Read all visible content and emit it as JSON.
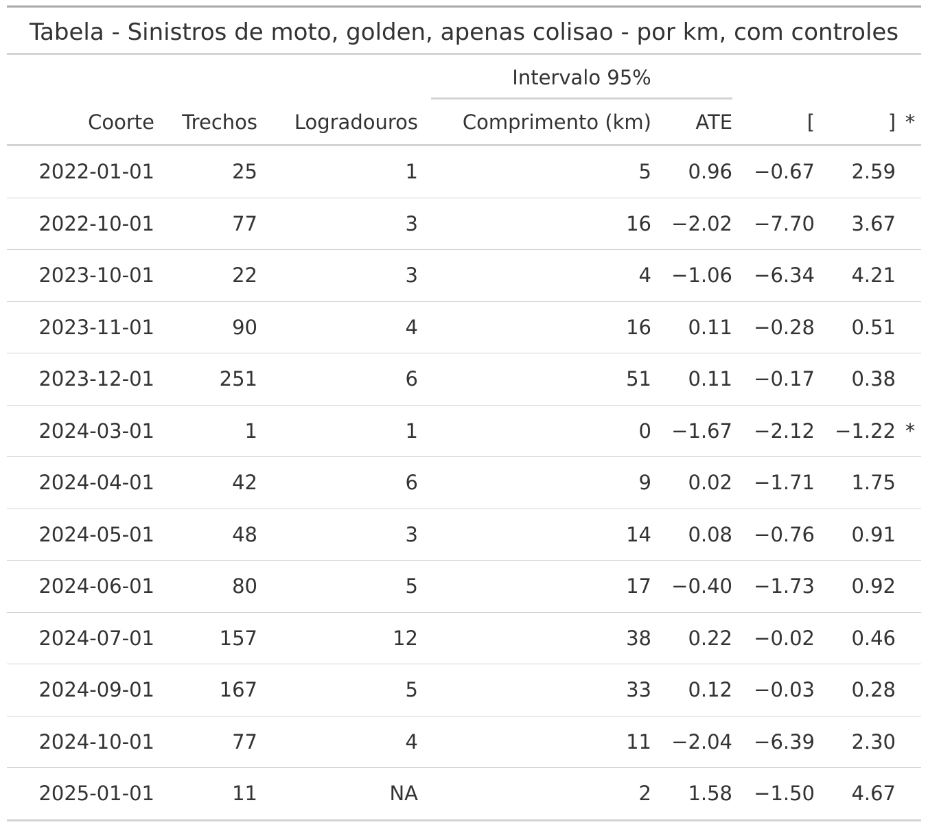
{
  "title": "Tabela - Sinistros de moto, golden, apenas colisao - por km, com controles",
  "spanner": "Intervalo 95%",
  "columns": [
    "Coorte",
    "Trechos",
    "Logradouros",
    "Comprimento (km)",
    "ATE",
    "[",
    "]",
    "*"
  ],
  "rows": [
    [
      "2022-01-01",
      "25",
      "1",
      "5",
      "0.96",
      "−0.67",
      "2.59",
      ""
    ],
    [
      "2022-10-01",
      "77",
      "3",
      "16",
      "−2.02",
      "−7.70",
      "3.67",
      ""
    ],
    [
      "2023-10-01",
      "22",
      "3",
      "4",
      "−1.06",
      "−6.34",
      "4.21",
      ""
    ],
    [
      "2023-11-01",
      "90",
      "4",
      "16",
      "0.11",
      "−0.28",
      "0.51",
      ""
    ],
    [
      "2023-12-01",
      "251",
      "6",
      "51",
      "0.11",
      "−0.17",
      "0.38",
      ""
    ],
    [
      "2024-03-01",
      "1",
      "1",
      "0",
      "−1.67",
      "−2.12",
      "−1.22",
      "*"
    ],
    [
      "2024-04-01",
      "42",
      "6",
      "9",
      "0.02",
      "−1.71",
      "1.75",
      ""
    ],
    [
      "2024-05-01",
      "48",
      "3",
      "14",
      "0.08",
      "−0.76",
      "0.91",
      ""
    ],
    [
      "2024-06-01",
      "80",
      "5",
      "17",
      "−0.40",
      "−1.73",
      "0.92",
      ""
    ],
    [
      "2024-07-01",
      "157",
      "12",
      "38",
      "0.22",
      "−0.02",
      "0.46",
      ""
    ],
    [
      "2024-09-01",
      "167",
      "5",
      "33",
      "0.12",
      "−0.03",
      "0.28",
      ""
    ],
    [
      "2024-10-01",
      "77",
      "4",
      "11",
      "−2.04",
      "−6.39",
      "2.30",
      ""
    ],
    [
      "2025-01-01",
      "11",
      "NA",
      "2",
      "1.58",
      "−1.50",
      "4.67",
      ""
    ]
  ],
  "colors": {
    "text": "#333333",
    "rule_strong": "#a8a8a8",
    "rule": "#d3d3d3"
  }
}
